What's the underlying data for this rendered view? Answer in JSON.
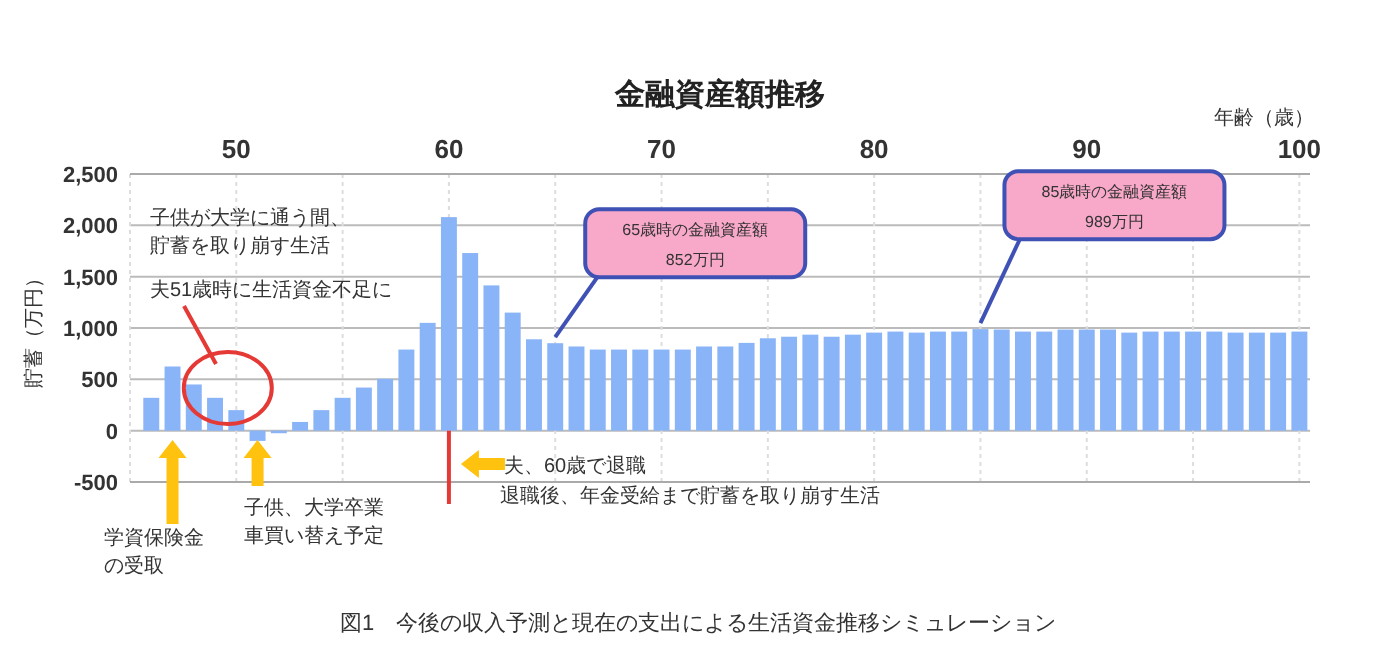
{
  "chart_data": {
    "type": "bar",
    "title": "金融資産額推移",
    "xlabel": "年齢（歳）",
    "ylabel": "貯蓄（万円）",
    "x": [
      46,
      47,
      48,
      49,
      50,
      51,
      52,
      53,
      54,
      55,
      56,
      57,
      58,
      59,
      60,
      61,
      62,
      63,
      64,
      65,
      66,
      67,
      68,
      69,
      70,
      71,
      72,
      73,
      74,
      75,
      76,
      77,
      78,
      79,
      80,
      81,
      82,
      83,
      84,
      85,
      86,
      87,
      88,
      89,
      90,
      91,
      92,
      93,
      94,
      95,
      96,
      97,
      98,
      99,
      100
    ],
    "values": [
      320,
      625,
      450,
      320,
      200,
      -100,
      -25,
      85,
      200,
      320,
      420,
      505,
      790,
      1050,
      2080,
      1730,
      1415,
      1150,
      890,
      852,
      820,
      790,
      790,
      790,
      790,
      790,
      820,
      820,
      855,
      900,
      915,
      935,
      915,
      935,
      955,
      965,
      955,
      965,
      965,
      989,
      985,
      965,
      965,
      985,
      985,
      985,
      955,
      965,
      965,
      965,
      965,
      955,
      955,
      955,
      965
    ],
    "color": "#8ab4f8",
    "xlim": [
      45,
      100.5
    ],
    "xticks": [
      {
        "value": 45,
        "label": null
      },
      50,
      {
        "value": 55,
        "label": null
      },
      60,
      {
        "value": 65,
        "label": null
      },
      70,
      {
        "value": 75,
        "label": null
      },
      80,
      {
        "value": 85,
        "label": null
      },
      90,
      {
        "value": 95,
        "label": null
      },
      100
    ],
    "ylim": [
      -500,
      2500
    ],
    "yticks": [
      {
        "value": -500,
        "label": "-500"
      },
      {
        "value": 0,
        "label": "0"
      },
      {
        "value": 500,
        "label": "500"
      },
      {
        "value": 1000,
        "label": "1,000"
      },
      {
        "value": 1500,
        "label": "1,500"
      },
      {
        "value": 2000,
        "label": "2,000"
      },
      {
        "value": 2500,
        "label": "2,500"
      }
    ],
    "grid": true,
    "annotations": [
      "子供が大学に通う間、",
      "貯蓄を取り崩す生活",
      "夫51歳時に生活資金不足に",
      "学資保険金",
      "の受取",
      "子供、大学卒業",
      "車買い替え予定",
      "夫、60歳で退職",
      "退職後、年金受給まで貯蓄を取り崩す生活",
      {
        "text": "65歳時の金融資産額\n852万円",
        "x": 65,
        "y": 852
      },
      {
        "text": "85歳時の金融資産額\n989万円",
        "x": 85,
        "y": 989
      },
      "図1　今後の収入予測と現在の支出による生活資金推移シミュレーション"
    ]
  }
}
